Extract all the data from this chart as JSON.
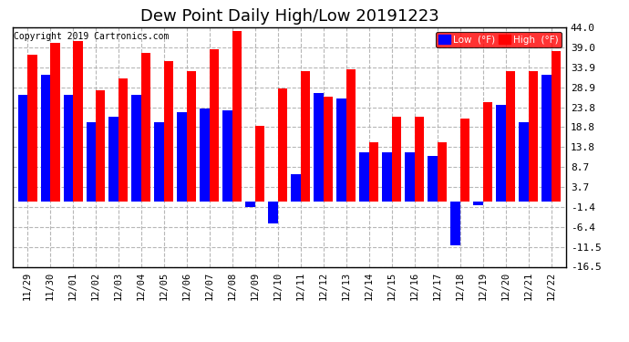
{
  "title": "Dew Point Daily High/Low 20191223",
  "copyright": "Copyright 2019 Cartronics.com",
  "dates": [
    "11/29",
    "11/30",
    "12/01",
    "12/02",
    "12/03",
    "12/04",
    "12/05",
    "12/06",
    "12/07",
    "12/08",
    "12/09",
    "12/10",
    "12/11",
    "12/12",
    "12/13",
    "12/14",
    "12/15",
    "12/16",
    "12/17",
    "12/18",
    "12/19",
    "12/20",
    "12/21",
    "12/22"
  ],
  "high": [
    37.0,
    40.0,
    40.5,
    28.0,
    31.0,
    37.5,
    35.5,
    33.0,
    38.5,
    43.0,
    19.0,
    28.5,
    33.0,
    26.5,
    33.5,
    15.0,
    21.5,
    21.5,
    15.0,
    21.0,
    25.0,
    33.0,
    33.0,
    38.0
  ],
  "low": [
    27.0,
    32.0,
    27.0,
    20.0,
    21.5,
    27.0,
    20.0,
    22.5,
    23.5,
    23.0,
    -1.4,
    -5.5,
    7.0,
    27.5,
    26.0,
    12.5,
    12.5,
    12.5,
    11.5,
    -11.0,
    -1.0,
    24.5,
    20.0,
    32.0
  ],
  "ylim": [
    -16.5,
    44.0
  ],
  "yticks": [
    -16.5,
    -11.5,
    -6.4,
    -1.4,
    3.7,
    8.7,
    13.8,
    18.8,
    23.8,
    28.9,
    33.9,
    39.0,
    44.0
  ],
  "high_color": "#ff0000",
  "low_color": "#0000ff",
  "bg_color": "#ffffff",
  "grid_color": "#b0b0b0",
  "title_fontsize": 13,
  "legend_low_label": "Low  (°F)",
  "legend_high_label": "High  (°F)",
  "bar_width": 0.42,
  "figsize": [
    6.9,
    3.75
  ],
  "dpi": 100
}
